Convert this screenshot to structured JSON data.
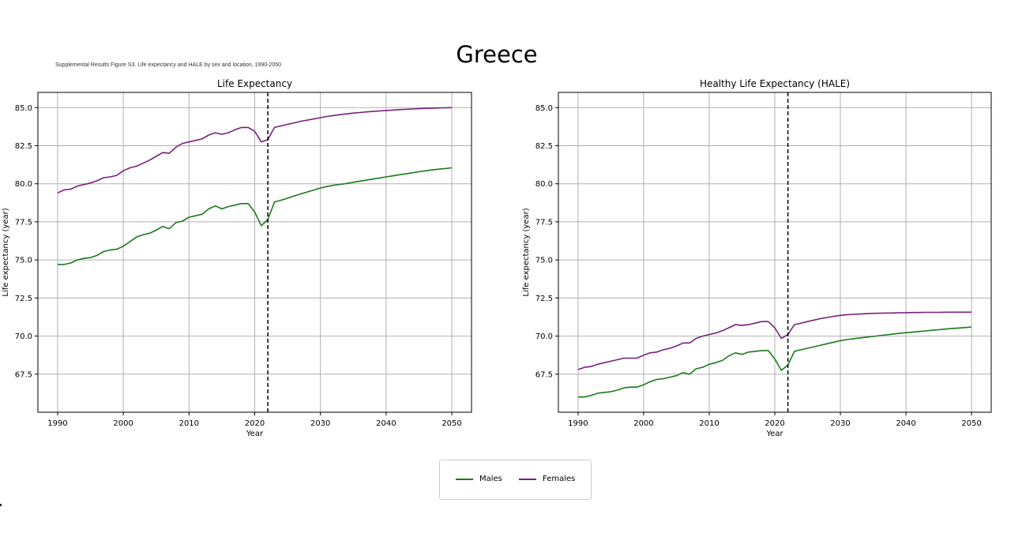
{
  "page": {
    "title": "Greece",
    "caption": "Supplemental Results Figure S3. Life expectancy and HALE by sex and location, 1990-2050"
  },
  "legend": {
    "items": [
      {
        "label": "Males",
        "color": "#1a7a1a"
      },
      {
        "label": "Females",
        "color": "#7a1f7a"
      }
    ]
  },
  "chart_data": [
    {
      "type": "line",
      "title": "Life Expectancy",
      "xlabel": "Year",
      "ylabel": "Life expectancy (year)",
      "xlim": [
        1987,
        2053
      ],
      "ylim": [
        65.0,
        86.0
      ],
      "xticks": [
        1990,
        2000,
        2010,
        2020,
        2030,
        2040,
        2050
      ],
      "yticks": [
        67.5,
        70.0,
        72.5,
        75.0,
        77.5,
        80.0,
        82.5,
        85.0
      ],
      "grid": true,
      "vline": 2022,
      "x": [
        1990,
        1991,
        1992,
        1993,
        1994,
        1995,
        1996,
        1997,
        1998,
        1999,
        2000,
        2001,
        2002,
        2003,
        2004,
        2005,
        2006,
        2007,
        2008,
        2009,
        2010,
        2011,
        2012,
        2013,
        2014,
        2015,
        2016,
        2017,
        2018,
        2019,
        2020,
        2021,
        2022,
        2023,
        2024,
        2025,
        2026,
        2027,
        2028,
        2029,
        2030,
        2031,
        2032,
        2033,
        2034,
        2035,
        2036,
        2037,
        2038,
        2039,
        2040,
        2041,
        2042,
        2043,
        2044,
        2045,
        2046,
        2047,
        2048,
        2049,
        2050
      ],
      "series": [
        {
          "name": "Males",
          "color": "#1a7a1a",
          "values": [
            74.7,
            74.7,
            74.8,
            75.0,
            75.1,
            75.15,
            75.3,
            75.55,
            75.65,
            75.7,
            75.9,
            76.2,
            76.5,
            76.65,
            76.75,
            76.95,
            77.2,
            77.05,
            77.45,
            77.55,
            77.8,
            77.9,
            78.0,
            78.35,
            78.55,
            78.35,
            78.5,
            78.6,
            78.7,
            78.7,
            78.15,
            77.25,
            77.65,
            78.8,
            78.92,
            79.05,
            79.2,
            79.33,
            79.46,
            79.59,
            79.72,
            79.82,
            79.9,
            79.96,
            80.02,
            80.1,
            80.17,
            80.24,
            80.31,
            80.38,
            80.45,
            80.52,
            80.59,
            80.65,
            80.72,
            80.79,
            80.85,
            80.91,
            80.96,
            81.0,
            81.05
          ]
        },
        {
          "name": "Females",
          "color": "#7a1f7a",
          "values": [
            79.4,
            79.6,
            79.65,
            79.85,
            79.95,
            80.05,
            80.2,
            80.4,
            80.45,
            80.55,
            80.85,
            81.05,
            81.15,
            81.35,
            81.55,
            81.8,
            82.05,
            82.0,
            82.4,
            82.65,
            82.75,
            82.85,
            82.95,
            83.2,
            83.35,
            83.25,
            83.35,
            83.55,
            83.7,
            83.7,
            83.45,
            82.75,
            82.9,
            83.7,
            83.8,
            83.9,
            84.0,
            84.1,
            84.18,
            84.26,
            84.34,
            84.42,
            84.48,
            84.54,
            84.59,
            84.64,
            84.68,
            84.72,
            84.75,
            84.78,
            84.81,
            84.84,
            84.87,
            84.89,
            84.91,
            84.93,
            84.95,
            84.97,
            84.98,
            84.99,
            85.0
          ]
        }
      ]
    },
    {
      "type": "line",
      "title": "Healthy Life Expectancy (HALE)",
      "xlabel": "Year",
      "ylabel": "Life expectancy (year)",
      "xlim": [
        1987,
        2053
      ],
      "ylim": [
        65.0,
        86.0
      ],
      "xticks": [
        1990,
        2000,
        2010,
        2020,
        2030,
        2040,
        2050
      ],
      "yticks": [
        67.5,
        70.0,
        72.5,
        75.0,
        77.5,
        80.0,
        82.5,
        85.0
      ],
      "grid": true,
      "vline": 2022,
      "x": [
        1990,
        1991,
        1992,
        1993,
        1994,
        1995,
        1996,
        1997,
        1998,
        1999,
        2000,
        2001,
        2002,
        2003,
        2004,
        2005,
        2006,
        2007,
        2008,
        2009,
        2010,
        2011,
        2012,
        2013,
        2014,
        2015,
        2016,
        2017,
        2018,
        2019,
        2020,
        2021,
        2022,
        2023,
        2024,
        2025,
        2026,
        2027,
        2028,
        2029,
        2030,
        2031,
        2032,
        2033,
        2034,
        2035,
        2036,
        2037,
        2038,
        2039,
        2040,
        2041,
        2042,
        2043,
        2044,
        2045,
        2046,
        2047,
        2048,
        2049,
        2050
      ],
      "series": [
        {
          "name": "Males",
          "color": "#1a7a1a",
          "values": [
            66.0,
            66.0,
            66.1,
            66.25,
            66.3,
            66.35,
            66.45,
            66.6,
            66.65,
            66.65,
            66.8,
            67.0,
            67.15,
            67.2,
            67.3,
            67.4,
            67.6,
            67.5,
            67.85,
            67.95,
            68.15,
            68.25,
            68.4,
            68.7,
            68.9,
            68.8,
            68.95,
            69.0,
            69.05,
            69.05,
            68.5,
            67.75,
            68.1,
            69.0,
            69.1,
            69.2,
            69.3,
            69.4,
            69.5,
            69.6,
            69.7,
            69.77,
            69.83,
            69.88,
            69.93,
            69.98,
            70.03,
            70.08,
            70.13,
            70.18,
            70.22,
            70.26,
            70.3,
            70.34,
            70.38,
            70.42,
            70.46,
            70.5,
            70.53,
            70.56,
            70.6
          ]
        },
        {
          "name": "Females",
          "color": "#7a1f7a",
          "values": [
            67.8,
            67.95,
            68.0,
            68.15,
            68.25,
            68.35,
            68.45,
            68.55,
            68.55,
            68.55,
            68.75,
            68.9,
            68.95,
            69.1,
            69.2,
            69.35,
            69.55,
            69.55,
            69.85,
            70.0,
            70.1,
            70.2,
            70.35,
            70.55,
            70.75,
            70.7,
            70.75,
            70.85,
            70.95,
            70.95,
            70.55,
            69.85,
            70.1,
            70.75,
            70.85,
            70.95,
            71.05,
            71.15,
            71.22,
            71.3,
            71.36,
            71.4,
            71.43,
            71.45,
            71.47,
            71.49,
            71.5,
            71.51,
            71.52,
            71.53,
            71.54,
            71.55,
            71.55,
            71.56,
            71.56,
            71.56,
            71.57,
            71.57,
            71.57,
            71.57,
            71.57
          ]
        }
      ]
    }
  ]
}
